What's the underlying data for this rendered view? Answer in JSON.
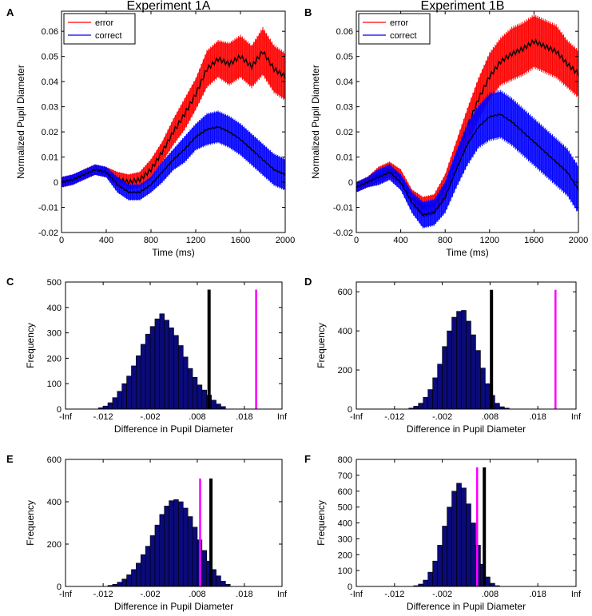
{
  "chart_data": [
    {
      "panel": "A",
      "type": "line",
      "title": "Experiment 1A",
      "xlabel": "Time (ms)",
      "ylabel": "Normalized Pupil Diameter",
      "xlim": [
        0,
        2000
      ],
      "ylim": [
        -0.02,
        0.068
      ],
      "xticks": [
        "0",
        "400",
        "800",
        "1200",
        "1600",
        "2000"
      ],
      "yticks": [
        "-0.02",
        "-0.01",
        "0",
        "0.01",
        "0.02",
        "0.03",
        "0.04",
        "0.05",
        "0.06"
      ],
      "legend": [
        "error",
        "correct"
      ],
      "legend_position": "top-left",
      "series": [
        {
          "name": "error",
          "color": "#ff0000",
          "x": [
            0,
            100,
            200,
            300,
            400,
            500,
            600,
            700,
            800,
            900,
            1000,
            1100,
            1200,
            1300,
            1400,
            1500,
            1600,
            1700,
            1800,
            1900,
            2000
          ],
          "values": [
            0,
            0.001,
            0.003,
            0.005,
            0.004,
            0.001,
            0,
            0.001,
            0.005,
            0.012,
            0.02,
            0.027,
            0.035,
            0.045,
            0.049,
            0.047,
            0.05,
            0.046,
            0.052,
            0.045,
            0.042
          ],
          "err": [
            0.002,
            0.002,
            0.002,
            0.002,
            0.002,
            0.003,
            0.003,
            0.003,
            0.004,
            0.004,
            0.005,
            0.006,
            0.006,
            0.007,
            0.007,
            0.008,
            0.008,
            0.008,
            0.009,
            0.009,
            0.009
          ]
        },
        {
          "name": "correct",
          "color": "#0000ff",
          "x": [
            0,
            100,
            200,
            300,
            400,
            500,
            600,
            700,
            800,
            900,
            1000,
            1100,
            1200,
            1300,
            1400,
            1500,
            1600,
            1700,
            1800,
            1900,
            2000
          ],
          "values": [
            0,
            0.001,
            0.003,
            0.005,
            0.004,
            -0.001,
            -0.004,
            -0.004,
            -0.001,
            0.004,
            0.009,
            0.013,
            0.018,
            0.021,
            0.022,
            0.02,
            0.017,
            0.013,
            0.009,
            0.005,
            0.003
          ],
          "err": [
            0.002,
            0.002,
            0.002,
            0.002,
            0.002,
            0.003,
            0.003,
            0.003,
            0.003,
            0.004,
            0.004,
            0.005,
            0.005,
            0.006,
            0.006,
            0.006,
            0.006,
            0.006,
            0.006,
            0.006,
            0.006
          ]
        }
      ]
    },
    {
      "panel": "B",
      "type": "line",
      "title": "Experiment 1B",
      "xlabel": "Time (ms)",
      "ylabel": "Normalized Pupil Diameter",
      "xlim": [
        0,
        2000
      ],
      "ylim": [
        -0.02,
        0.068
      ],
      "xticks": [
        "0",
        "400",
        "800",
        "1200",
        "1600",
        "2000"
      ],
      "yticks": [
        "-0.02",
        "-0.01",
        "0",
        "0.01",
        "0.02",
        "0.03",
        "0.04",
        "0.05",
        "0.06"
      ],
      "legend": [
        "error",
        "correct"
      ],
      "legend_position": "top-left",
      "series": [
        {
          "name": "error",
          "color": "#ff0000",
          "x": [
            0,
            100,
            200,
            300,
            400,
            500,
            600,
            700,
            800,
            900,
            1000,
            1100,
            1200,
            1300,
            1400,
            1500,
            1600,
            1700,
            1800,
            1900,
            2000
          ],
          "values": [
            -0.002,
            0,
            0.003,
            0.005,
            0.002,
            -0.006,
            -0.01,
            -0.009,
            -0.002,
            0.01,
            0.022,
            0.033,
            0.042,
            0.048,
            0.051,
            0.053,
            0.056,
            0.054,
            0.052,
            0.047,
            0.043
          ],
          "err": [
            0.002,
            0.002,
            0.003,
            0.003,
            0.003,
            0.003,
            0.004,
            0.004,
            0.005,
            0.006,
            0.007,
            0.008,
            0.009,
            0.009,
            0.01,
            0.01,
            0.01,
            0.01,
            0.01,
            0.009,
            0.009
          ]
        },
        {
          "name": "correct",
          "color": "#0000ff",
          "x": [
            0,
            100,
            200,
            300,
            400,
            500,
            600,
            700,
            800,
            900,
            1000,
            1100,
            1200,
            1300,
            1400,
            1500,
            1600,
            1700,
            1800,
            1900,
            2000
          ],
          "values": [
            -0.002,
            0,
            0.002,
            0.004,
            0,
            -0.008,
            -0.013,
            -0.012,
            -0.006,
            0.005,
            0.015,
            0.022,
            0.026,
            0.027,
            0.024,
            0.02,
            0.016,
            0.012,
            0.008,
            0.004,
            -0.003
          ],
          "err": [
            0.002,
            0.002,
            0.003,
            0.003,
            0.003,
            0.004,
            0.005,
            0.005,
            0.006,
            0.007,
            0.008,
            0.008,
            0.009,
            0.009,
            0.009,
            0.009,
            0.009,
            0.009,
            0.009,
            0.009,
            0.009
          ]
        }
      ]
    },
    {
      "panel": "C",
      "type": "bar",
      "xlabel": "Difference in Pupil Diameter",
      "ylabel": "Frequency",
      "ylim": [
        0,
        500
      ],
      "yticks": [
        "0",
        "100",
        "200",
        "300",
        "400",
        "500"
      ],
      "xticks": [
        "-Inf",
        "-.012",
        "-.002",
        ".008",
        ".018",
        "Inf"
      ],
      "bin_centers": [
        -0.0125,
        -0.0115,
        -0.0105,
        -0.0095,
        -0.0085,
        -0.0075,
        -0.0065,
        -0.0055,
        -0.0045,
        -0.0035,
        -0.0025,
        -0.0015,
        -0.0005,
        0.0005,
        0.0015,
        0.0025,
        0.0035,
        0.0045,
        0.0055,
        0.0065,
        0.0075,
        0.0085,
        0.0095,
        0.0105,
        0.0115,
        0.0125,
        0.0135
      ],
      "values": [
        5,
        12,
        25,
        45,
        70,
        100,
        130,
        170,
        210,
        255,
        295,
        325,
        355,
        375,
        350,
        320,
        290,
        250,
        205,
        160,
        125,
        95,
        75,
        55,
        35,
        20,
        10
      ],
      "markers": [
        {
          "label": "black",
          "value": 0.0105,
          "height": 470,
          "color": "#000000"
        },
        {
          "label": "magenta",
          "value": 0.0205,
          "height": 470,
          "color": "#ff00ff"
        }
      ]
    },
    {
      "panel": "D",
      "type": "bar",
      "xlabel": "Difference in Pupil Diameter",
      "ylabel": "Frequency",
      "ylim": [
        0,
        650
      ],
      "yticks": [
        "0",
        "200",
        "400",
        "600"
      ],
      "xticks": [
        "-Inf",
        "-.012",
        "-.002",
        ".008",
        ".018",
        "Inf"
      ],
      "bin_centers": [
        -0.0085,
        -0.0075,
        -0.0065,
        -0.0055,
        -0.0045,
        -0.0035,
        -0.0025,
        -0.0015,
        -0.0005,
        0.0005,
        0.0015,
        0.0025,
        0.0035,
        0.0045,
        0.0055,
        0.0065,
        0.0075,
        0.0085,
        0.0095,
        0.0105,
        0.0115
      ],
      "values": [
        5,
        15,
        30,
        60,
        100,
        160,
        230,
        320,
        400,
        470,
        500,
        505,
        450,
        380,
        300,
        210,
        130,
        70,
        30,
        12,
        5
      ],
      "markers": [
        {
          "label": "black",
          "value": 0.0083,
          "height": 610,
          "color": "#000000"
        },
        {
          "label": "magenta",
          "value": 0.0217,
          "height": 610,
          "color": "#ff00ff"
        }
      ]
    },
    {
      "panel": "E",
      "type": "bar",
      "xlabel": "Difference in Pupil Diameter",
      "ylabel": "Frequency",
      "ylim": [
        0,
        600
      ],
      "yticks": [
        "0",
        "200",
        "400",
        "600"
      ],
      "xticks": [
        "-Inf",
        "-.012",
        "-.002",
        ".008",
        ".018",
        "Inf"
      ],
      "bin_centers": [
        -0.0105,
        -0.0095,
        -0.0085,
        -0.0075,
        -0.0065,
        -0.0055,
        -0.0045,
        -0.0035,
        -0.0025,
        -0.0015,
        -0.0005,
        0.0005,
        0.0015,
        0.0025,
        0.0035,
        0.0045,
        0.0055,
        0.0065,
        0.0075,
        0.0085,
        0.0095,
        0.0105,
        0.0115,
        0.0125,
        0.0135,
        0.0145
      ],
      "values": [
        5,
        10,
        20,
        35,
        55,
        80,
        110,
        150,
        190,
        240,
        290,
        340,
        380,
        405,
        410,
        400,
        370,
        330,
        280,
        220,
        170,
        120,
        80,
        50,
        25,
        10
      ],
      "markers": [
        {
          "label": "magenta",
          "value": 0.0086,
          "height": 510,
          "color": "#ff00ff"
        },
        {
          "label": "black",
          "value": 0.0109,
          "height": 510,
          "color": "#000000"
        }
      ]
    },
    {
      "panel": "F",
      "type": "bar",
      "xlabel": "Difference in Pupil Diameter",
      "ylabel": "Frequency",
      "ylim": [
        0,
        800
      ],
      "yticks": [
        "0",
        "100",
        "200",
        "300",
        "400",
        "500",
        "600",
        "700",
        "800"
      ],
      "xticks": [
        "-Inf",
        "-.012",
        "-.002",
        ".008",
        ".018",
        "Inf"
      ],
      "bin_centers": [
        -0.0075,
        -0.0065,
        -0.0055,
        -0.0045,
        -0.0035,
        -0.0025,
        -0.0015,
        -0.0005,
        0.0005,
        0.0015,
        0.0025,
        0.0035,
        0.0045,
        0.0055,
        0.0065,
        0.0075,
        0.0085,
        0.0095
      ],
      "values": [
        5,
        15,
        40,
        90,
        160,
        260,
        380,
        500,
        600,
        650,
        620,
        520,
        400,
        260,
        140,
        60,
        20,
        5
      ],
      "markers": [
        {
          "label": "magenta",
          "value": 0.0053,
          "height": 750,
          "color": "#ff00ff"
        },
        {
          "label": "black",
          "value": 0.0068,
          "height": 750,
          "color": "#000000"
        }
      ]
    }
  ]
}
